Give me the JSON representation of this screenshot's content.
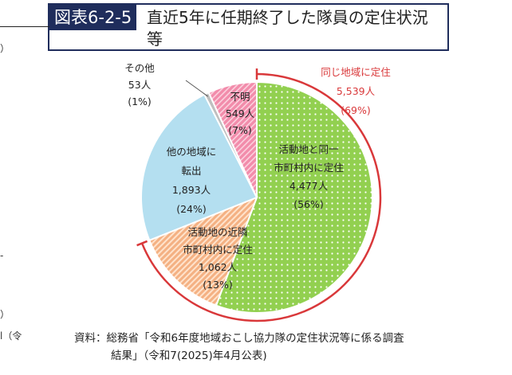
{
  "figure": {
    "label": "図表6-2-5",
    "title": "直近5年に任期終了した隊員の定住状況等"
  },
  "source": {
    "line1": "資料：総務省「令和6年度地域おこし協力隊の定住状況等に係る調査",
    "line2": "結果」（令和7(2025)年4月公表)"
  },
  "edge_marks": [
    "）",
    "-",
    "）",
    "l（令"
  ],
  "chart_data": {
    "type": "pie",
    "slices": [
      {
        "label": [
          "活動地と同一",
          "市町村内に定住"
        ],
        "value": 4477,
        "value_text": "4,477人",
        "percent": 56,
        "percent_text": "(56%)",
        "color": "#92d050",
        "pattern": "dots"
      },
      {
        "label": [
          "活動地の近隣",
          "市町村内に定住"
        ],
        "value": 1062,
        "value_text": "1,062人",
        "percent": 13,
        "percent_text": "(13%)",
        "color": "#f4b183",
        "pattern": "stripes"
      },
      {
        "label": [
          "他の地域に",
          "転出"
        ],
        "value": 1893,
        "value_text": "1,893人",
        "percent": 24,
        "percent_text": "(24%)",
        "color": "#b4dff0",
        "pattern": "none"
      },
      {
        "label": [
          "その他"
        ],
        "value": 53,
        "value_text": "53人",
        "percent": 1,
        "percent_text": "(1%)",
        "color": "#bfbfbf",
        "pattern": "none"
      },
      {
        "label": [
          "不明"
        ],
        "value": 549,
        "value_text": "549人",
        "percent": 7,
        "percent_text": "(7%)",
        "color": "#f28cab",
        "pattern": "crosshatch"
      }
    ],
    "group": {
      "label": "同じ地域に定住",
      "value_text": "5,539人",
      "percent_text": "(69%)",
      "value": 5539,
      "percent": 69,
      "color": "#d9383a"
    }
  }
}
